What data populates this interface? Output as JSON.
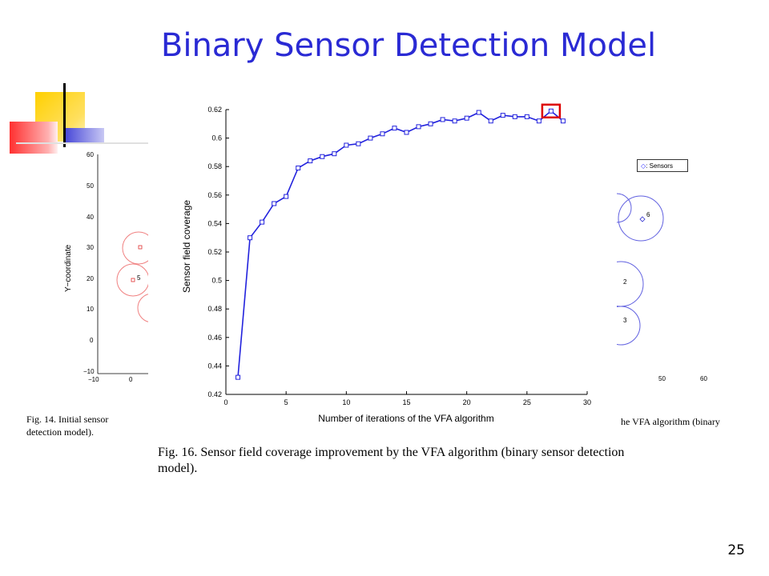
{
  "slide": {
    "title": "Binary Sensor Detection Model",
    "page_number": "25"
  },
  "left_figure": {
    "ylabel": "Y−coordinate",
    "yticks": [
      "60",
      "50",
      "40",
      "30",
      "20",
      "10",
      "0",
      "−10"
    ],
    "xticks": [
      "−10",
      "0"
    ],
    "point_label": "5",
    "caption": "Fig. 14.   Initial sensor",
    "caption_line2": "detection model)."
  },
  "right_figure": {
    "legend": ": Sensors",
    "labels": [
      "6",
      "2",
      "3"
    ],
    "xticks": [
      "50",
      "60"
    ],
    "caption": "he VFA algorithm (binary"
  },
  "main_caption": "Fig. 16.   Sensor field coverage improvement by the VFA algorithm (binary sensor detection model).",
  "chart_data": {
    "type": "line",
    "title": "",
    "xlabel": "Number of iterations of the VFA algorithm",
    "ylabel": "Sensor field coverage",
    "xlim": [
      0,
      30
    ],
    "ylim": [
      0.42,
      0.62
    ],
    "xticks": [
      0,
      5,
      10,
      15,
      20,
      25,
      30
    ],
    "yticks": [
      0.42,
      0.44,
      0.46,
      0.48,
      0.5,
      0.52,
      0.54,
      0.56,
      0.58,
      0.6,
      0.62
    ],
    "ytick_labels": [
      "0.42",
      "0.44",
      "0.46",
      "0.48",
      "0.5",
      "0.52",
      "0.54",
      "0.56",
      "0.58",
      "0.6",
      "0.62"
    ],
    "xtick_labels": [
      "0",
      "5",
      "10",
      "15",
      "20",
      "25",
      "30"
    ],
    "grid": false,
    "line_color": "#2222dd",
    "highlight_color": "#dd0000",
    "highlight_index": 26,
    "series": [
      {
        "x": [
          1,
          2,
          3,
          4,
          5,
          6,
          7,
          8,
          9,
          10,
          11,
          12,
          13,
          14,
          15,
          16,
          17,
          18,
          19,
          20,
          21,
          22,
          23,
          24,
          25,
          26,
          27,
          28
        ],
        "values": [
          0.432,
          0.53,
          0.541,
          0.554,
          0.559,
          0.579,
          0.584,
          0.587,
          0.589,
          0.595,
          0.596,
          0.6,
          0.603,
          0.607,
          0.604,
          0.608,
          0.61,
          0.613,
          0.612,
          0.614,
          0.618,
          0.612,
          0.616,
          0.615,
          0.615,
          0.612,
          0.619,
          0.612
        ]
      }
    ]
  }
}
